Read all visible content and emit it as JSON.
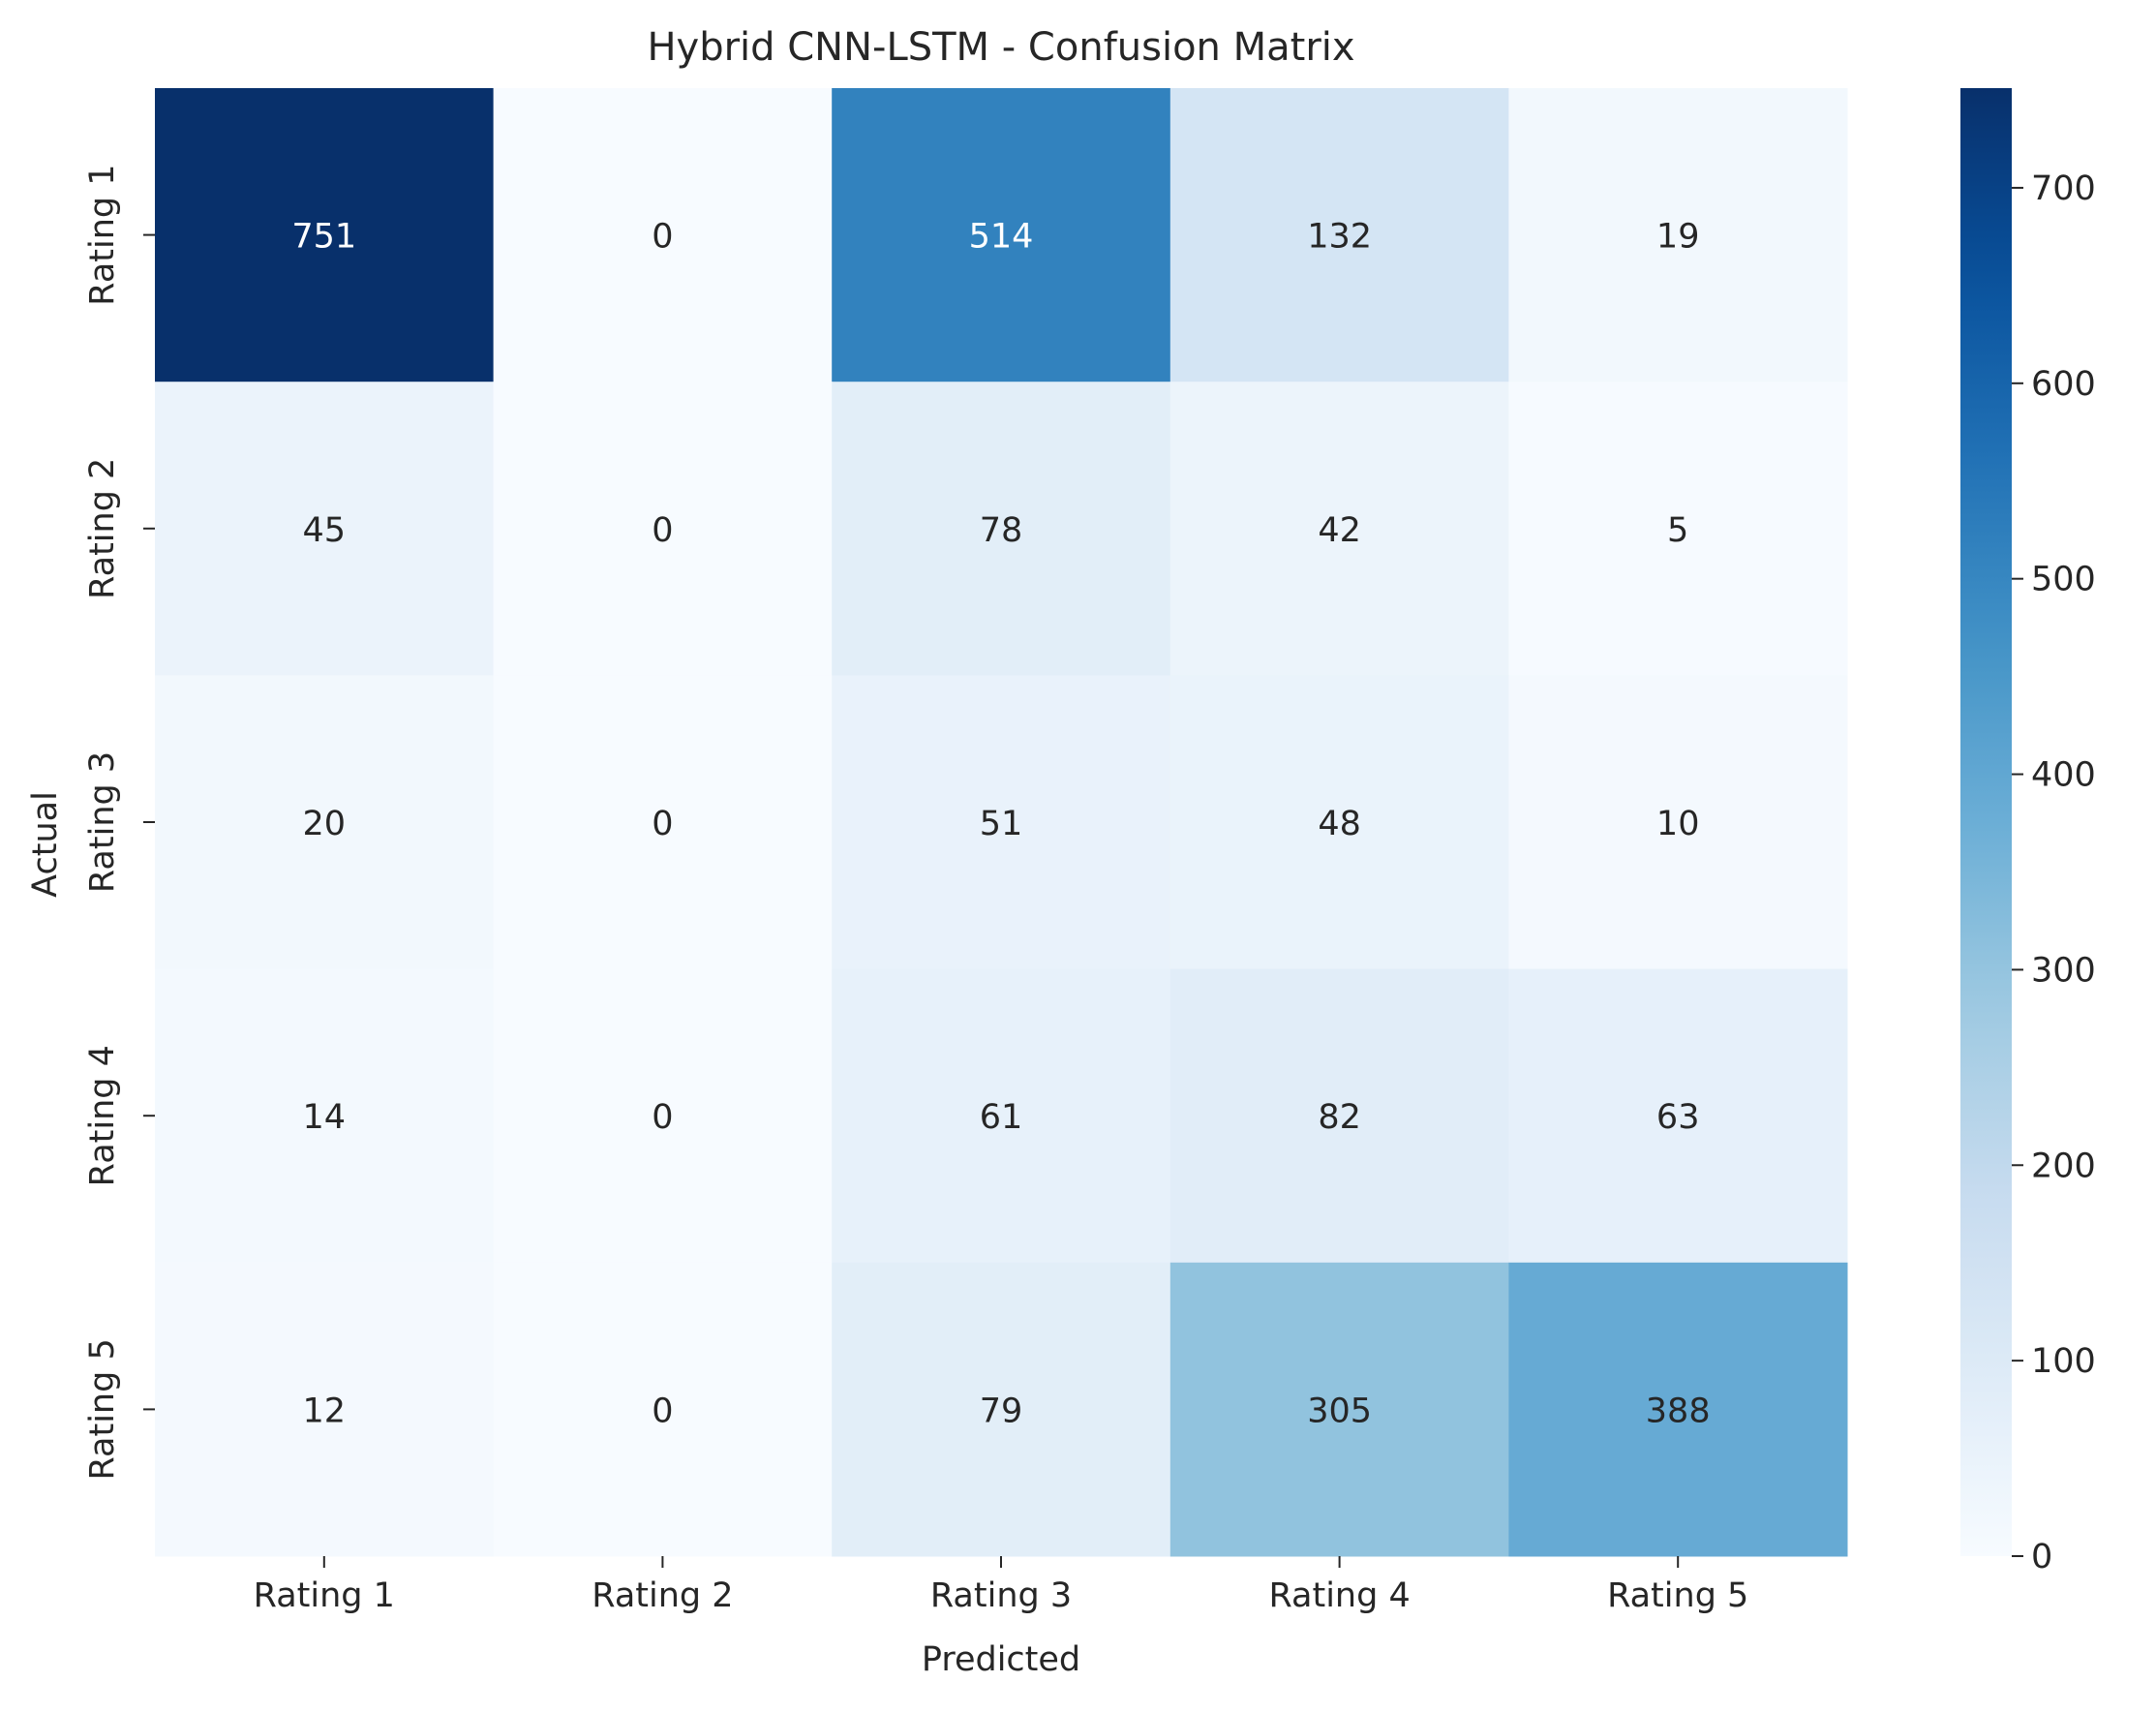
{
  "chart_data": {
    "type": "heatmap",
    "title": "Hybrid CNN-LSTM - Confusion Matrix",
    "xlabel": "Predicted",
    "ylabel": "Actual",
    "x_categories": [
      "Rating 1",
      "Rating 2",
      "Rating 3",
      "Rating 4",
      "Rating 5"
    ],
    "y_categories": [
      "Rating 1",
      "Rating 2",
      "Rating 3",
      "Rating 4",
      "Rating 5"
    ],
    "values": [
      [
        751,
        0,
        514,
        132,
        19
      ],
      [
        45,
        0,
        78,
        42,
        5
      ],
      [
        20,
        0,
        51,
        48,
        10
      ],
      [
        14,
        0,
        61,
        82,
        63
      ],
      [
        12,
        0,
        79,
        305,
        388
      ]
    ],
    "colorbar": {
      "range": [
        0,
        751
      ],
      "ticks": [
        0,
        100,
        200,
        300,
        400,
        500,
        600,
        700
      ],
      "colormap": "Blues"
    }
  }
}
